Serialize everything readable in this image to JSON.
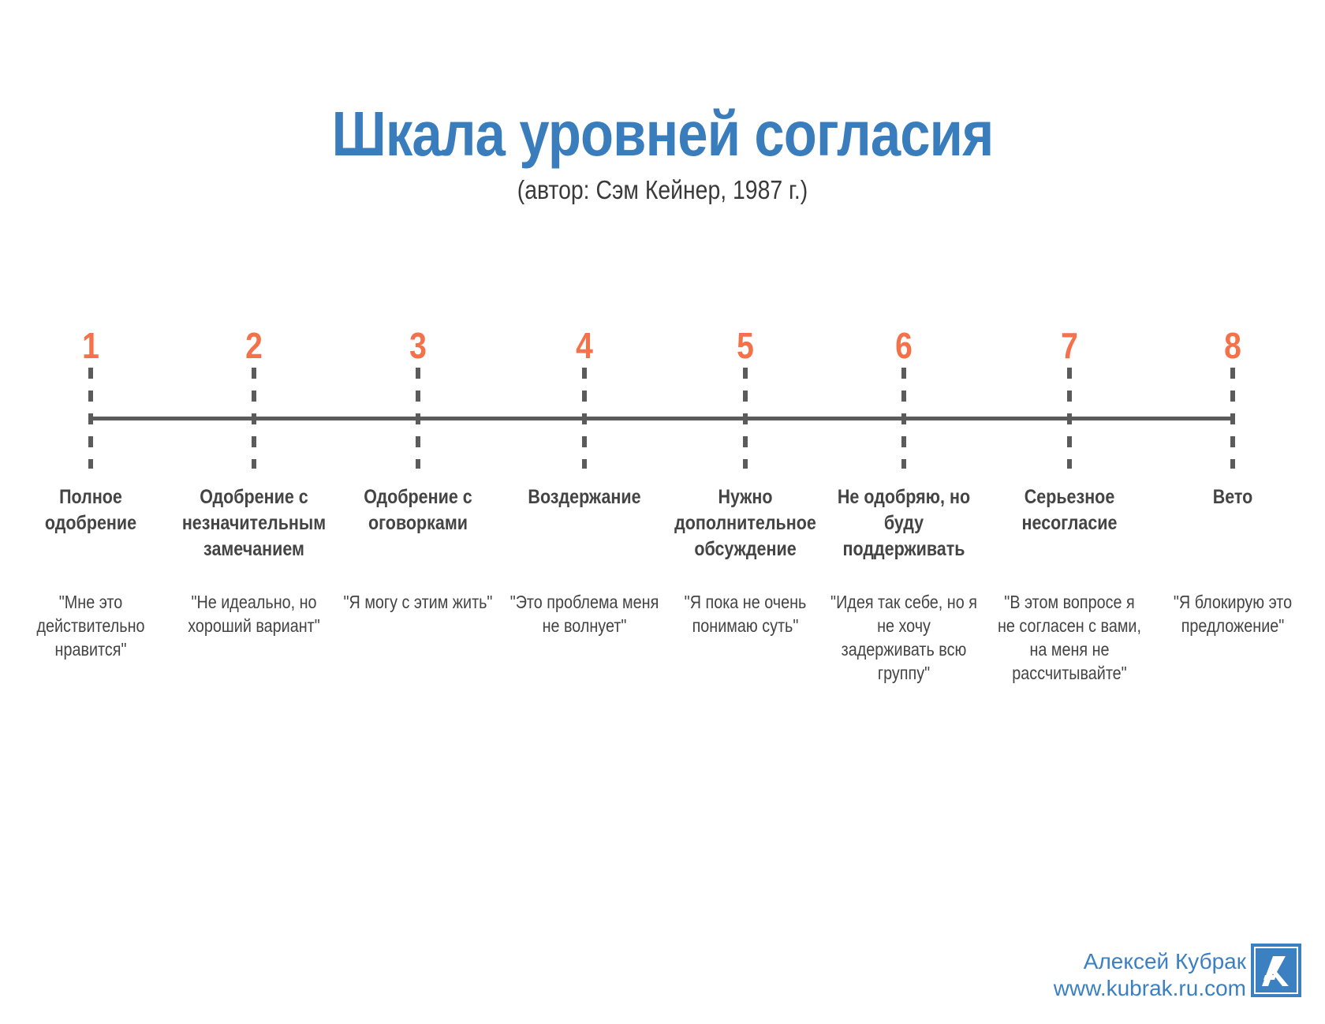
{
  "header": {
    "title": "Шкала уровней согласия",
    "subtitle": "(автор: Сэм Кейнер, 1987 г.)"
  },
  "colors": {
    "title": "#3a7dbc",
    "number": "#f4714a",
    "text": "#444444",
    "axis": "#5b5b5b",
    "brand": "#3b80c1"
  },
  "scale": {
    "levels": [
      {
        "number": "1",
        "label": "Полное одобрение",
        "quote": "\"Мне это действительно нравится\""
      },
      {
        "number": "2",
        "label": "Одобрение с незначительным замечанием",
        "quote": "\"Не идеально, но хороший вариант\""
      },
      {
        "number": "3",
        "label": "Одобрение с оговорками",
        "quote": "\"Я могу с этим жить\""
      },
      {
        "number": "4",
        "label": "Воздержание",
        "quote": "\"Это проблема меня не волнует\""
      },
      {
        "number": "5",
        "label": "Нужно дополнительное обсуждение",
        "quote": "\"Я пока не очень понимаю суть\""
      },
      {
        "number": "6",
        "label": "Не одобряю, но буду поддерживать",
        "quote": "\"Идея так себе, но я не хочу задерживать всю группу\""
      },
      {
        "number": "7",
        "label": "Серьезное несогласие",
        "quote": "\"В этом вопросе я не согласен с вами, на меня не рассчитывайте\""
      },
      {
        "number": "8",
        "label": "Вето",
        "quote": "\"Я блокирую это предложение\""
      }
    ]
  },
  "footer": {
    "author": "Алексей Кубрак",
    "website": "www.kubrak.ru.com",
    "logo_icon": "ak-monogram-logo"
  }
}
